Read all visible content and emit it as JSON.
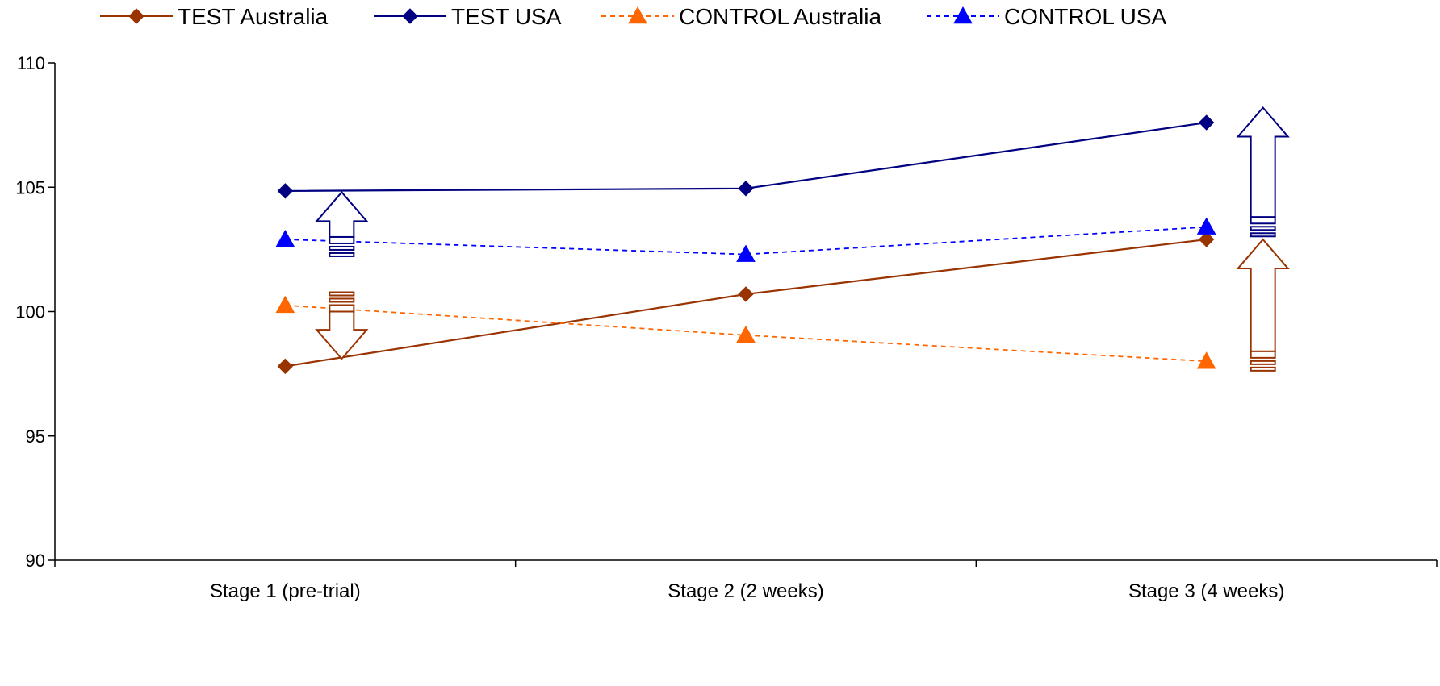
{
  "chart_data": {
    "type": "line",
    "categories": [
      "Stage 1 (pre-trial)",
      "Stage 2 (2 weeks)",
      "Stage 3 (4 weeks)"
    ],
    "ylim": [
      90,
      110
    ],
    "yticks": [
      90,
      95,
      100,
      105,
      110
    ],
    "grid": false,
    "legend_position": "top",
    "series": [
      {
        "name": "TEST Australia",
        "values": [
          97.8,
          100.7,
          102.9
        ],
        "color": "#993300",
        "marker": "diamond",
        "line_style": "solid"
      },
      {
        "name": "TEST USA",
        "values": [
          104.85,
          104.95,
          107.6
        ],
        "color": "#000080",
        "marker": "diamond",
        "line_style": "solid"
      },
      {
        "name": "CONTROL Australia",
        "values": [
          100.25,
          99.05,
          98.0
        ],
        "color": "#ff6600",
        "marker": "triangle",
        "line_style": "dashed"
      },
      {
        "name": "CONTROL USA",
        "values": [
          102.9,
          102.3,
          103.4
        ],
        "color": "#0000ff",
        "marker": "triangle",
        "line_style": "dashed"
      }
    ],
    "annotations": [
      {
        "type": "arrow-down",
        "category_index": 0,
        "color": "#993300",
        "from": 100.0,
        "to": 98.1
      },
      {
        "type": "arrow-up",
        "category_index": 0,
        "color": "#000080",
        "from": 103.0,
        "to": 104.8
      },
      {
        "type": "arrow-up",
        "category_index": 2,
        "color": "#993300",
        "from": 98.4,
        "to": 102.9
      },
      {
        "type": "arrow-up",
        "category_index": 2,
        "color": "#000080",
        "from": 103.8,
        "to": 108.2
      }
    ]
  }
}
